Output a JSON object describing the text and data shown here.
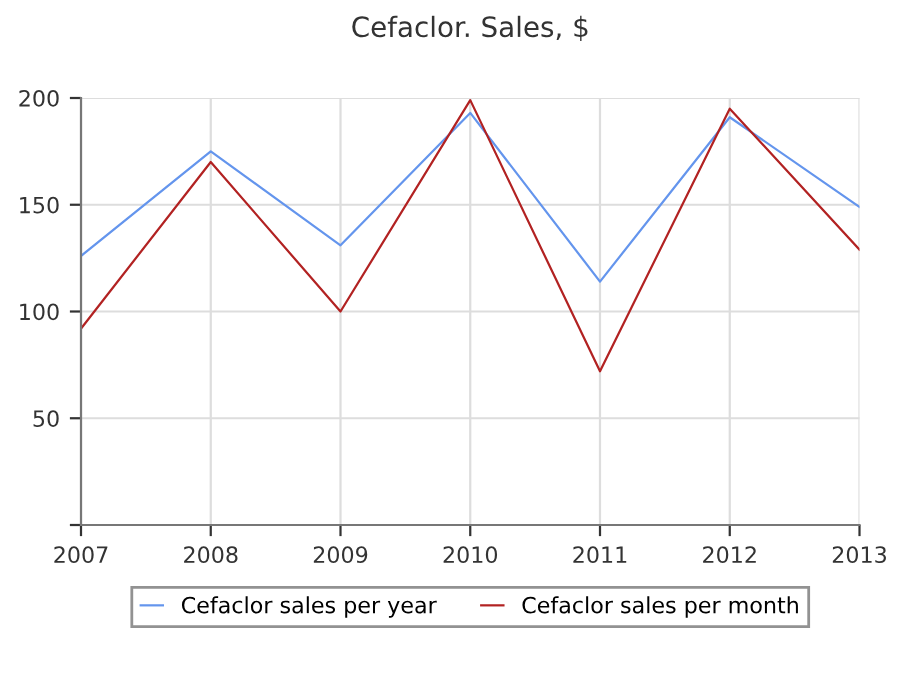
{
  "chart_data": {
    "type": "line",
    "title": "Cefaclor. Sales, $",
    "x": [
      2007,
      2008,
      2009,
      2010,
      2011,
      2012,
      2013
    ],
    "series": [
      {
        "name": "Cefaclor sales per year",
        "color": "#6495ed",
        "values": [
          126,
          175,
          131,
          193,
          114,
          191,
          149
        ]
      },
      {
        "name": "Cefaclor sales per month",
        "color": "#b22222",
        "values": [
          92,
          170,
          100,
          199,
          72,
          195,
          129
        ]
      }
    ],
    "xlim": [
      2007,
      2013
    ],
    "xticks": [
      2007,
      2008,
      2009,
      2010,
      2011,
      2012,
      2013
    ],
    "ylim": [
      0,
      200
    ],
    "yticks": [
      {
        "value": 0,
        "label": null
      },
      50,
      100,
      150,
      200
    ],
    "grid": true,
    "legend": "bottom",
    "marker": "none",
    "line_style": "solid"
  }
}
